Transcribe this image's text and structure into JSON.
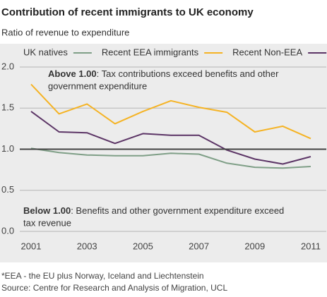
{
  "chart_data": {
    "type": "line",
    "title": "Contribution of recent immigrants to UK economy",
    "subtitle": "Ratio of revenue to expenditure",
    "x": [
      2001,
      2002,
      2003,
      2004,
      2005,
      2006,
      2007,
      2008,
      2009,
      2010,
      2011
    ],
    "xlim": [
      2001,
      2011
    ],
    "xticks": [
      2001,
      2003,
      2005,
      2007,
      2009,
      2011
    ],
    "ylim": [
      0,
      2
    ],
    "yticks": [
      {
        "value": 0,
        "label": "0.0"
      },
      {
        "value": 0.5,
        "label": "0.5"
      },
      {
        "value": 1,
        "label": "1.0"
      },
      {
        "value": 1.5,
        "label": "1.5"
      },
      {
        "value": 2,
        "label": "2.0"
      }
    ],
    "grid": true,
    "reference_line": 1,
    "series": [
      {
        "name": "UK natives",
        "color": "#7f9f87",
        "values": [
          1.01,
          0.96,
          0.93,
          0.92,
          0.92,
          0.95,
          0.94,
          0.83,
          0.78,
          0.77,
          0.79
        ]
      },
      {
        "name": "Recent EEA immigrants",
        "color": "#f5b324",
        "values": [
          1.79,
          1.43,
          1.55,
          1.31,
          1.46,
          1.59,
          1.51,
          1.45,
          1.21,
          1.28,
          1.13
        ]
      },
      {
        "name": "Recent Non-EEA",
        "color": "#5c3566",
        "values": [
          1.46,
          1.21,
          1.2,
          1.07,
          1.19,
          1.17,
          1.17,
          0.99,
          0.88,
          0.82,
          0.91
        ]
      }
    ],
    "annotations": [
      {
        "bold": "Above 1.00",
        "lines": [
          ": Tax contributions exceed benefits and other",
          "government expenditure"
        ]
      },
      {
        "bold": "Below 1.00",
        "lines": [
          ": Benefits and other government expenditure exceed",
          "tax revenue"
        ]
      }
    ],
    "footnotes": [
      "*EEA - the EU plus Norway, Iceland and Liechtenstein",
      "Source: Centre for Research and Analysis of Migration, UCL"
    ]
  }
}
